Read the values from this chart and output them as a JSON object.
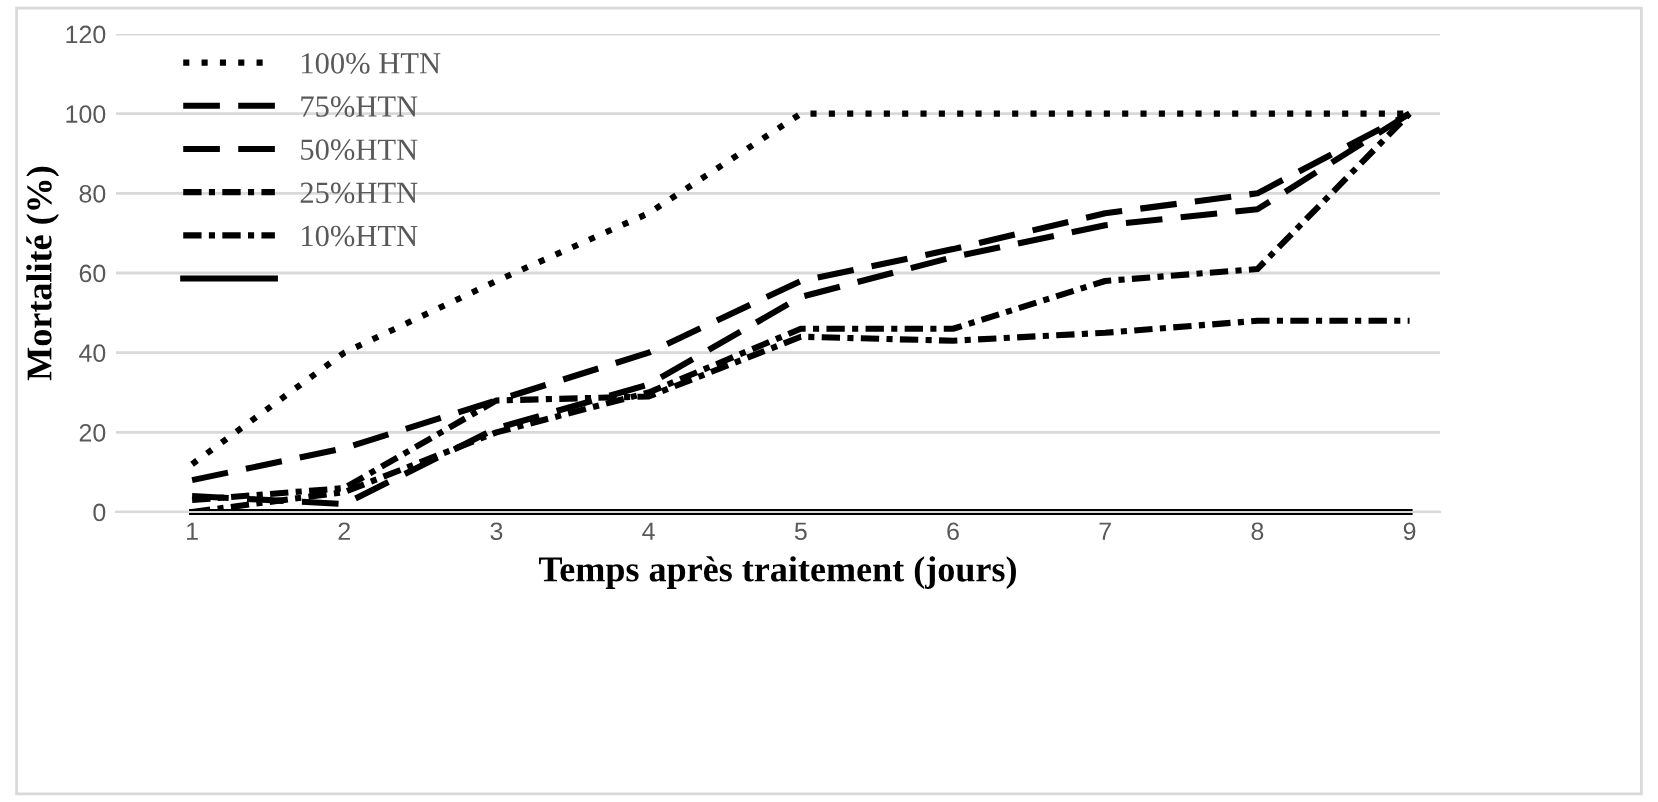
{
  "chart_data": {
    "type": "line",
    "xlabel": "Temps après traitement (jours)",
    "ylabel": "Mortalité (%)",
    "x": [
      1,
      2,
      3,
      4,
      5,
      6,
      7,
      8,
      9
    ],
    "series": [
      {
        "name": "100% HTN",
        "color": "#000000",
        "line_style": "dotted",
        "values": [
          12,
          40,
          58,
          75,
          100,
          100,
          100,
          100,
          100
        ]
      },
      {
        "name": "75%HTN",
        "color": "#000000",
        "line_style": "dashed",
        "values": [
          8,
          16,
          28,
          40,
          58,
          66,
          75,
          80,
          100
        ]
      },
      {
        "name": "50%HTN",
        "color": "#000000",
        "line_style": "dashed",
        "values": [
          4,
          2,
          21,
          32,
          54,
          64,
          72,
          76,
          100
        ]
      },
      {
        "name": "25%HTN",
        "color": "#000000",
        "line_style": "dashdot",
        "values": [
          0,
          5,
          20,
          30,
          46,
          46,
          58,
          61,
          100
        ]
      },
      {
        "name": "10%HTN",
        "color": "#000000",
        "line_style": "dashdot",
        "values": [
          3,
          6,
          28,
          29,
          44,
          43,
          45,
          48,
          48
        ]
      },
      {
        "color": "#000000",
        "line_style": "solid",
        "values": [
          0,
          0,
          0,
          0,
          0,
          0,
          0,
          0,
          0
        ]
      }
    ],
    "xlim": [
      0.5,
      9.2
    ],
    "ylim": [
      0,
      120
    ],
    "xticks": [
      1,
      2,
      3,
      4,
      5,
      6,
      7,
      8,
      9
    ],
    "yticks": [
      0,
      20,
      40,
      60,
      80,
      100,
      120
    ],
    "grid": "y",
    "legend": "top left",
    "marker": "none"
  }
}
